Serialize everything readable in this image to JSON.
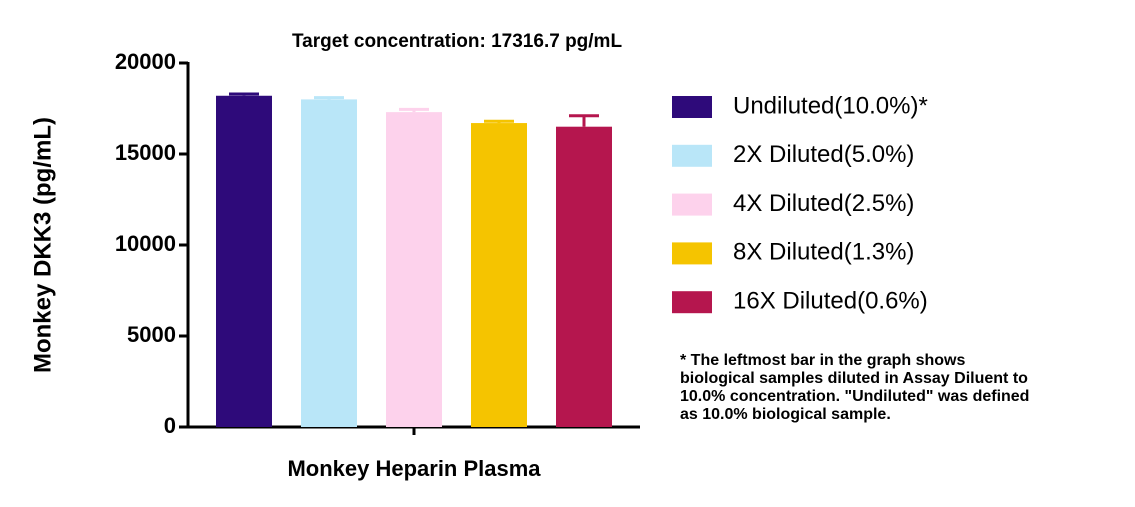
{
  "chart_data": {
    "type": "bar",
    "title": "Target concentration: 17316.7 pg/mL",
    "ylabel": "Monkey DKK3 (pg/mL)",
    "categories": [
      "Monkey Heparin Plasma"
    ],
    "series": [
      {
        "name": "Undiluted(10.0%)*",
        "color": "#2e0a7a",
        "values": [
          18200
        ],
        "errors": [
          100
        ]
      },
      {
        "name": "2X Diluted(5.0%)",
        "color": "#b9e6f8",
        "values": [
          18000
        ],
        "errors": [
          100
        ]
      },
      {
        "name": "4X Diluted(2.5%)",
        "color": "#fdd2ec",
        "values": [
          17300
        ],
        "errors": [
          150
        ]
      },
      {
        "name": "8X Diluted(1.3%)",
        "color": "#f5c400",
        "values": [
          16700
        ],
        "errors": [
          100
        ]
      },
      {
        "name": "16X Diluted(0.6%)",
        "color": "#b5164e",
        "values": [
          16500
        ],
        "errors": [
          600
        ]
      }
    ],
    "ylim": [
      0,
      20000
    ],
    "yticks": [
      0,
      5000,
      10000,
      15000,
      20000
    ],
    "legend": "right",
    "annotation": [
      "* The leftmost bar in the graph shows",
      "biological samples diluted in Assay Diluent to",
      "10.0% concentration. \"Undiluted\" was defined",
      "as 10.0% biological sample."
    ]
  }
}
